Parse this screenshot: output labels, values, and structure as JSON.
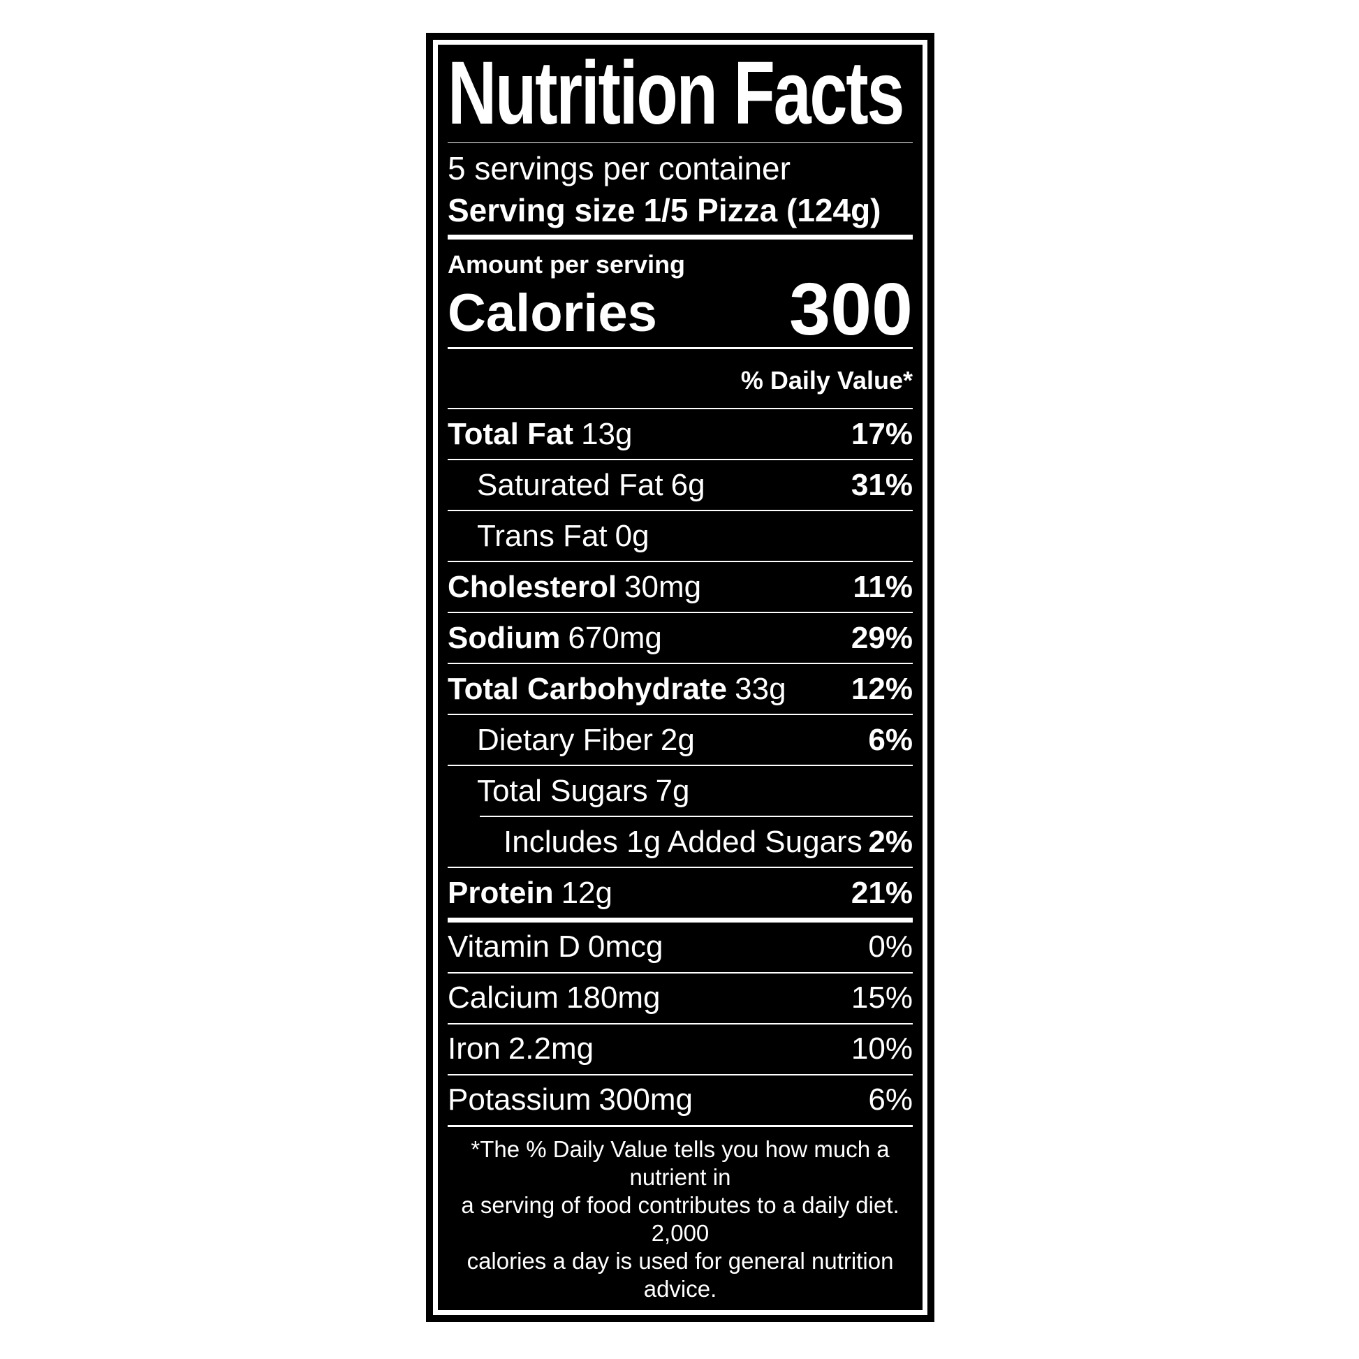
{
  "label": {
    "title": "Nutrition Facts",
    "servings_per_container": "5 servings per container",
    "serving_size_label": "Serving size",
    "serving_size_value": "1/5 Pizza (124g)",
    "amount_per_serving": "Amount per serving",
    "calories_label": "Calories",
    "calories_value": "300",
    "daily_value_header": "% Daily Value*",
    "rows": [
      {
        "name": "Total Fat",
        "amount": "13g",
        "pct": "17%"
      },
      {
        "name": "Saturated Fat",
        "amount": "6g",
        "pct": "31%"
      },
      {
        "name": "Trans Fat",
        "amount": "0g",
        "pct": ""
      },
      {
        "name": "Cholesterol",
        "amount": "30mg",
        "pct": "11%"
      },
      {
        "name": "Sodium",
        "amount": "670mg",
        "pct": "29%"
      },
      {
        "name": "Total Carbohydrate",
        "amount": "33g",
        "pct": "12%"
      },
      {
        "name": "Dietary Fiber",
        "amount": "2g",
        "pct": "6%"
      },
      {
        "name": "Total Sugars",
        "amount": "7g",
        "pct": ""
      },
      {
        "name": "Includes 1g Added Sugars",
        "amount": "",
        "pct": "2%"
      },
      {
        "name": "Protein",
        "amount": "12g",
        "pct": "21%"
      },
      {
        "name": "Vitamin D",
        "amount": "0mcg",
        "pct": "0%"
      },
      {
        "name": "Calcium",
        "amount": "180mg",
        "pct": "15%"
      },
      {
        "name": "Iron",
        "amount": "2.2mg",
        "pct": "10%"
      },
      {
        "name": "Potassium",
        "amount": "300mg",
        "pct": "6%"
      }
    ],
    "footnote_lines": [
      "*The % Daily Value tells you how much a nutrient in",
      "a serving of food contributes to a daily diet. 2,000",
      "calories a day is used for general nutrition advice."
    ],
    "colors": {
      "panel_background": "#000000",
      "text": "#ffffff",
      "page_background": "#ffffff"
    }
  }
}
